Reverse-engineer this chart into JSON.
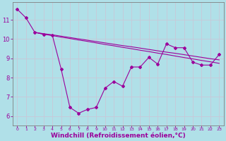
{
  "background_color": "#b0e0e8",
  "grid_color": "#c8c8d8",
  "line_color": "#9b009b",
  "xlabel": "Windchill (Refroidissement éolien,°C)",
  "xlabel_fontsize": 6.5,
  "ylim": [
    5.5,
    11.9
  ],
  "xlim": [
    -0.5,
    23.5
  ],
  "yticks": [
    6,
    7,
    8,
    9,
    10,
    11
  ],
  "curve1_x": [
    0,
    1,
    2,
    3,
    4,
    5,
    6,
    7,
    8,
    9,
    10,
    11,
    12,
    13,
    14,
    15,
    16,
    17,
    18,
    19,
    20,
    21,
    22,
    23
  ],
  "curve1_y": [
    11.55,
    11.1,
    10.35,
    10.25,
    10.2,
    8.45,
    6.45,
    6.15,
    6.35,
    6.45,
    7.45,
    7.8,
    7.55,
    8.55,
    8.55,
    9.05,
    8.7,
    9.75,
    9.55,
    9.55,
    8.8,
    8.65,
    8.65,
    9.2
  ],
  "curve2_x": [
    2,
    3,
    4,
    5,
    6,
    7,
    8,
    9,
    10,
    11,
    12,
    13,
    14,
    15,
    16,
    17,
    18,
    19,
    20,
    21,
    22,
    23
  ],
  "curve2_y": [
    10.35,
    10.28,
    10.22,
    10.15,
    10.08,
    10.01,
    9.94,
    9.87,
    9.8,
    9.73,
    9.66,
    9.6,
    9.53,
    9.46,
    9.39,
    9.32,
    9.26,
    9.19,
    9.12,
    9.05,
    8.98,
    8.92
  ],
  "curve3_x": [
    2,
    3,
    4,
    5,
    6,
    7,
    8,
    9,
    10,
    11,
    12,
    13,
    14,
    15,
    16,
    17,
    18,
    19,
    20,
    21,
    22,
    23
  ],
  "curve3_y": [
    10.35,
    10.25,
    10.18,
    10.1,
    10.03,
    9.95,
    9.88,
    9.8,
    9.72,
    9.65,
    9.57,
    9.5,
    9.42,
    9.35,
    9.27,
    9.2,
    9.12,
    9.04,
    8.97,
    8.89,
    8.82,
    8.74
  ],
  "xtick_labels": [
    "0",
    "1",
    "2",
    "3",
    "4",
    "5",
    "6",
    "7",
    "8",
    "9",
    "10",
    "11",
    "12",
    "13",
    "14",
    "15",
    "16",
    "17",
    "18",
    "19",
    "20",
    "21",
    "22",
    "23"
  ]
}
